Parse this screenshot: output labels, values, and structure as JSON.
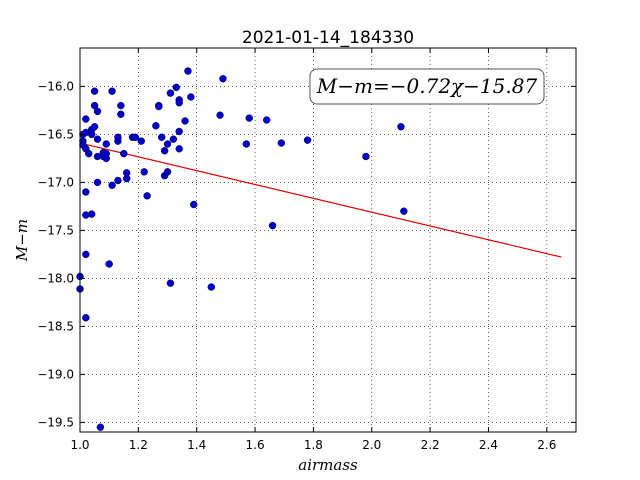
{
  "chart_data": {
    "type": "scatter",
    "title": "2021-01-14_184330",
    "xlabel": "airmass",
    "ylabel": "M−m",
    "xlim": [
      1.0,
      2.7
    ],
    "ylim": [
      -19.6,
      -15.6
    ],
    "x_ticks": [
      1.0,
      1.2,
      1.4,
      1.6,
      1.8,
      2.0,
      2.2,
      2.4,
      2.6
    ],
    "x_tick_labels": [
      "1.0",
      "1.2",
      "1.4",
      "1.6",
      "1.8",
      "2.0",
      "2.2",
      "2.4",
      "2.6"
    ],
    "y_ticks": [
      -16.0,
      -16.5,
      -17.0,
      -17.5,
      -18.0,
      -18.5,
      -19.0,
      -19.5
    ],
    "y_tick_labels": [
      "−16.0",
      "−16.5",
      "−17.0",
      "−17.5",
      "−18.0",
      "−18.5",
      "−19.0",
      "−19.5"
    ],
    "grid": true,
    "annotation": "M−m=−0.72χ−15.87",
    "fit_line": {
      "slope": -0.72,
      "intercept": -15.87,
      "x_range": [
        1.0,
        2.65
      ],
      "color": "#dd0000"
    },
    "point_color": "#0000cc",
    "points": [
      [
        1.0,
        -17.98
      ],
      [
        1.0,
        -18.11
      ],
      [
        1.01,
        -16.5
      ],
      [
        1.01,
        -16.57
      ],
      [
        1.01,
        -16.61
      ],
      [
        1.02,
        -16.34
      ],
      [
        1.02,
        -16.48
      ],
      [
        1.02,
        -16.65
      ],
      [
        1.02,
        -17.1
      ],
      [
        1.02,
        -17.75
      ],
      [
        1.02,
        -18.41
      ],
      [
        1.02,
        -17.34
      ],
      [
        1.03,
        -16.7
      ],
      [
        1.04,
        -16.45
      ],
      [
        1.04,
        -16.5
      ],
      [
        1.04,
        -17.33
      ],
      [
        1.05,
        -16.42
      ],
      [
        1.05,
        -16.05
      ],
      [
        1.05,
        -16.2
      ],
      [
        1.06,
        -16.26
      ],
      [
        1.06,
        -16.55
      ],
      [
        1.06,
        -17.0
      ],
      [
        1.06,
        -16.73
      ],
      [
        1.07,
        -19.55
      ],
      [
        1.08,
        -16.69
      ],
      [
        1.08,
        -16.73
      ],
      [
        1.09,
        -16.6
      ],
      [
        1.09,
        -16.7
      ],
      [
        1.09,
        -16.75
      ],
      [
        1.1,
        -17.85
      ],
      [
        1.11,
        -17.03
      ],
      [
        1.11,
        -16.05
      ],
      [
        1.13,
        -16.57
      ],
      [
        1.13,
        -16.53
      ],
      [
        1.13,
        -16.98
      ],
      [
        1.14,
        -16.2
      ],
      [
        1.14,
        -16.29
      ],
      [
        1.15,
        -16.7
      ],
      [
        1.16,
        -16.96
      ],
      [
        1.16,
        -16.9
      ],
      [
        1.18,
        -16.53
      ],
      [
        1.19,
        -16.53
      ],
      [
        1.21,
        -16.57
      ],
      [
        1.22,
        -16.89
      ],
      [
        1.23,
        -17.14
      ],
      [
        1.26,
        -16.41
      ],
      [
        1.27,
        -16.2
      ],
      [
        1.27,
        -16.21
      ],
      [
        1.28,
        -16.53
      ],
      [
        1.29,
        -16.67
      ],
      [
        1.29,
        -16.93
      ],
      [
        1.3,
        -16.89
      ],
      [
        1.3,
        -16.6
      ],
      [
        1.31,
        -16.07
      ],
      [
        1.31,
        -18.05
      ],
      [
        1.32,
        -16.55
      ],
      [
        1.33,
        -16.01
      ],
      [
        1.34,
        -16.14
      ],
      [
        1.34,
        -16.17
      ],
      [
        1.34,
        -16.47
      ],
      [
        1.34,
        -16.65
      ],
      [
        1.36,
        -16.36
      ],
      [
        1.37,
        -15.84
      ],
      [
        1.38,
        -16.11
      ],
      [
        1.39,
        -17.23
      ],
      [
        1.45,
        -18.09
      ],
      [
        1.48,
        -16.3
      ],
      [
        1.49,
        -15.92
      ],
      [
        1.57,
        -16.6
      ],
      [
        1.58,
        -16.33
      ],
      [
        1.64,
        -16.35
      ],
      [
        1.66,
        -17.45
      ],
      [
        1.69,
        -16.59
      ],
      [
        1.78,
        -16.56
      ],
      [
        1.98,
        -16.73
      ],
      [
        2.1,
        -16.42
      ],
      [
        2.11,
        -17.3
      ]
    ]
  }
}
